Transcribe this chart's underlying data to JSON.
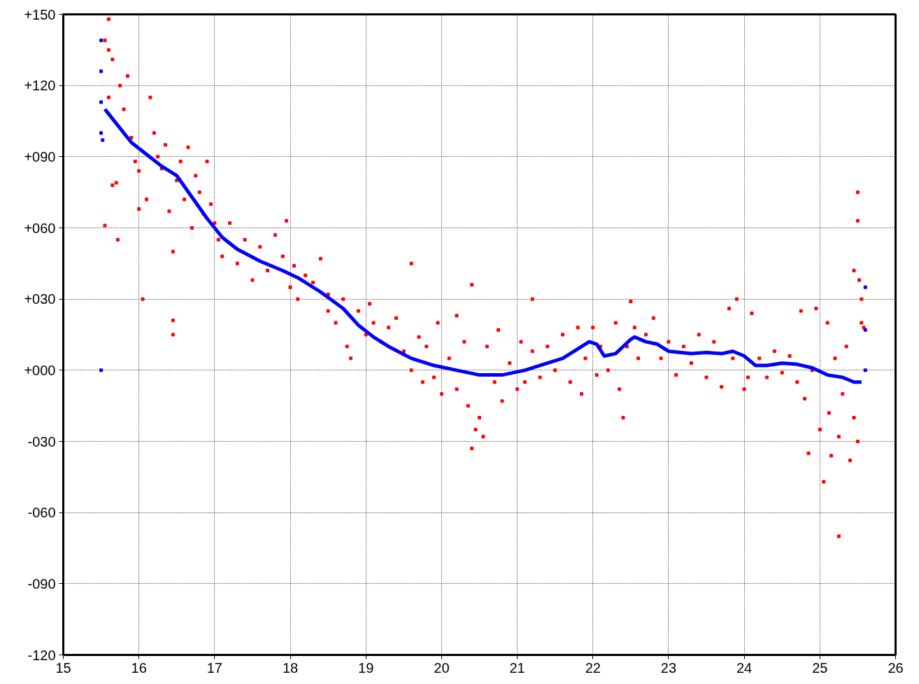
{
  "chart_data": {
    "type": "scatter",
    "xlim": [
      15,
      26
    ],
    "xticks": [
      15,
      16,
      17,
      18,
      19,
      20,
      21,
      22,
      23,
      24,
      25,
      26
    ],
    "ylim": [
      -120,
      150
    ],
    "yticks": [
      {
        "value": 150,
        "label": "+150"
      },
      {
        "value": 120,
        "label": "+120"
      },
      {
        "value": 90,
        "label": "+090"
      },
      {
        "value": 60,
        "label": "+060"
      },
      {
        "value": 30,
        "label": "+030"
      },
      {
        "value": 0,
        "label": "+000"
      },
      {
        "value": -30,
        "label": "-030"
      },
      {
        "value": -60,
        "label": "-060"
      },
      {
        "value": -90,
        "label": "-090"
      },
      {
        "value": -120,
        "label": "-120"
      }
    ],
    "grid": true,
    "series": [
      {
        "marker": "square",
        "color": "#ff0000",
        "x": [
          15.6,
          15.55,
          15.6,
          15.65,
          15.6,
          15.65,
          15.55,
          15.72,
          15.7,
          15.85,
          15.8,
          15.75,
          15.9,
          15.95,
          16.0,
          16.05,
          16.0,
          16.1,
          16.15,
          16.2,
          16.25,
          16.3,
          16.35,
          16.4,
          16.45,
          16.45,
          16.45,
          16.5,
          16.55,
          16.6,
          16.65,
          16.7,
          16.75,
          16.8,
          16.85,
          16.9,
          16.95,
          17.0,
          17.05,
          17.1,
          17.2,
          17.3,
          17.4,
          17.5,
          17.6,
          17.7,
          17.8,
          17.9,
          17.95,
          18.0,
          18.05,
          18.1,
          18.2,
          18.3,
          18.4,
          18.5,
          18.5,
          18.6,
          18.7,
          18.75,
          18.8,
          18.9,
          19.0,
          19.05,
          19.1,
          19.2,
          19.3,
          19.4,
          19.5,
          19.6,
          19.6,
          19.7,
          19.75,
          19.8,
          19.9,
          19.95,
          20.0,
          20.1,
          20.2,
          20.2,
          20.3,
          20.35,
          20.4,
          20.45,
          20.4,
          20.5,
          20.55,
          20.6,
          20.7,
          20.75,
          20.8,
          20.9,
          21.0,
          21.05,
          21.1,
          21.2,
          21.2,
          21.3,
          21.4,
          21.5,
          21.6,
          21.7,
          21.8,
          21.85,
          21.9,
          22.0,
          22.05,
          22.1,
          22.2,
          22.3,
          22.35,
          22.4,
          22.45,
          22.5,
          22.55,
          22.6,
          22.7,
          22.8,
          22.9,
          23.0,
          23.1,
          23.2,
          23.3,
          23.4,
          23.5,
          23.6,
          23.7,
          23.8,
          23.85,
          23.9,
          24.0,
          24.05,
          24.1,
          24.2,
          24.3,
          24.4,
          24.5,
          24.6,
          24.7,
          24.75,
          24.8,
          24.85,
          24.9,
          24.95,
          25.0,
          25.05,
          25.1,
          25.12,
          25.15,
          25.2,
          25.25,
          25.25,
          25.3,
          25.35,
          25.4,
          25.45,
          25.45,
          25.5,
          25.5,
          25.52,
          25.55,
          25.55,
          25.58,
          25.5
        ],
        "values": [
          148,
          139,
          135,
          131,
          115,
          78,
          61,
          55,
          79,
          124,
          110,
          120,
          98,
          88,
          84,
          30,
          68,
          72,
          115,
          100,
          90,
          85,
          95,
          67,
          50,
          21,
          15,
          80,
          88,
          72,
          94,
          60,
          82,
          75,
          66,
          88,
          70,
          62,
          55,
          48,
          62,
          45,
          55,
          38,
          52,
          42,
          57,
          48,
          63,
          35,
          44,
          30,
          40,
          37,
          47,
          25,
          32,
          20,
          30,
          10,
          5,
          25,
          15,
          28,
          20,
          12,
          18,
          22,
          8,
          45,
          0,
          14,
          -5,
          10,
          -3,
          20,
          -10,
          5,
          23,
          -8,
          12,
          -15,
          36,
          -25,
          -33,
          -20,
          -28,
          10,
          -5,
          17,
          -13,
          3,
          -8,
          12,
          -5,
          30,
          8,
          -3,
          10,
          0,
          15,
          -5,
          18,
          -10,
          5,
          18,
          -2,
          10,
          0,
          20,
          -8,
          -20,
          10,
          29,
          18,
          5,
          15,
          22,
          5,
          12,
          -2,
          10,
          3,
          15,
          -3,
          12,
          -7,
          26,
          5,
          30,
          -8,
          -3,
          24,
          5,
          -3,
          8,
          -1,
          6,
          -5,
          25,
          -12,
          -35,
          0,
          26,
          -25,
          -47,
          20,
          -18,
          -36,
          5,
          -28,
          -70,
          -10,
          10,
          -38,
          42,
          -20,
          75,
          63,
          38,
          30,
          20,
          18,
          -30
        ]
      },
      {
        "type": "line",
        "marker": "none",
        "color": "#0000ff",
        "x": [
          15.55,
          15.7,
          15.9,
          16.1,
          16.3,
          16.5,
          16.7,
          16.9,
          17.1,
          17.3,
          17.6,
          17.9,
          18.1,
          18.4,
          18.7,
          18.9,
          19.1,
          19.3,
          19.6,
          19.9,
          20.2,
          20.5,
          20.8,
          21.1,
          21.4,
          21.6,
          21.8,
          21.95,
          22.05,
          22.15,
          22.3,
          22.5,
          22.55,
          22.7,
          22.85,
          23.0,
          23.3,
          23.5,
          23.7,
          23.85,
          24.0,
          24.15,
          24.3,
          24.5,
          24.7,
          24.9,
          25.1,
          25.3,
          25.45,
          25.55
        ],
        "values": [
          110,
          104,
          96,
          91,
          86,
          82,
          73,
          64,
          56,
          51,
          46,
          42,
          39,
          33,
          26,
          19,
          14,
          10,
          5,
          2,
          0,
          -2,
          -2,
          0,
          3,
          5,
          9,
          12,
          11,
          6,
          7,
          13,
          14,
          12,
          11,
          8,
          7,
          7.5,
          7,
          8,
          6,
          2,
          2,
          3,
          2.5,
          1,
          -2,
          -3,
          -5,
          -5
        ]
      },
      {
        "marker": "square",
        "color": "#0000ff",
        "x": [
          15.5,
          15.5,
          15.5,
          15.5,
          15.52,
          15.5,
          25.6,
          25.6,
          25.6
        ],
        "values": [
          139,
          126,
          113,
          100,
          97,
          0,
          35,
          17,
          0
        ]
      }
    ]
  }
}
